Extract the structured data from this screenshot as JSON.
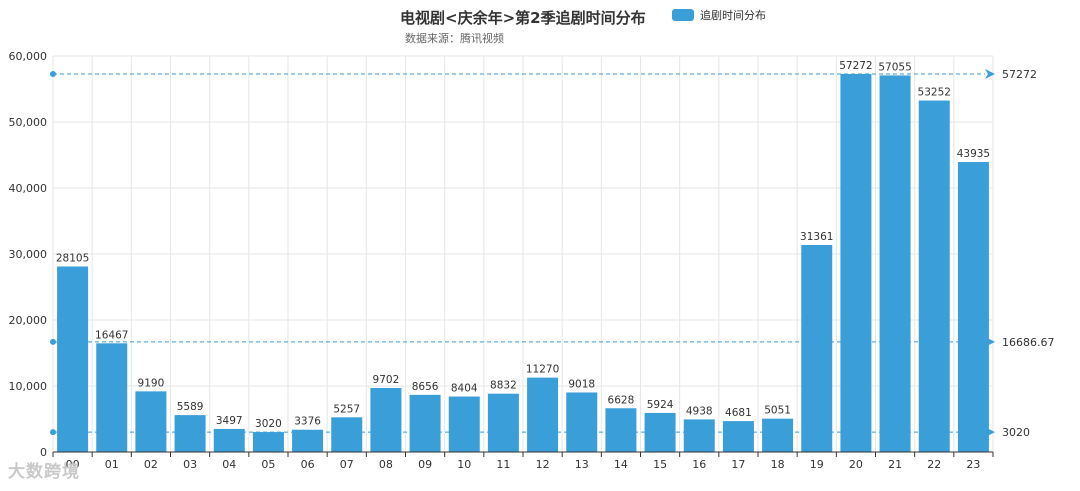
{
  "header": {
    "title": "电视剧<庆余年>第2季追剧时间分布",
    "subtitle": "数据来源：腾讯视频",
    "legend_label": "追剧时间分布"
  },
  "watermark": "大数跨境",
  "colors": {
    "bar": "#3a9ed9",
    "markline": "#3a9ed9",
    "grid": "#e6e6e6",
    "axis_text": "#333333"
  },
  "chart_data": {
    "type": "bar",
    "title": "电视剧<庆余年>第2季追剧时间分布",
    "subtitle": "数据来源：腾讯视频",
    "categories": [
      "00",
      "01",
      "02",
      "03",
      "04",
      "05",
      "06",
      "07",
      "08",
      "09",
      "10",
      "11",
      "12",
      "13",
      "14",
      "15",
      "16",
      "17",
      "18",
      "19",
      "20",
      "21",
      "22",
      "23"
    ],
    "series": [
      {
        "name": "追剧时间分布",
        "values": [
          28105,
          16467,
          9190,
          5589,
          3497,
          3020,
          3376,
          5257,
          9702,
          8656,
          8404,
          8832,
          11270,
          9018,
          6628,
          5924,
          4938,
          4681,
          5051,
          31361,
          57272,
          57055,
          53252,
          43935
        ]
      }
    ],
    "ylim": [
      0,
      60000
    ],
    "yticks": [
      "0",
      "10,000",
      "20,000",
      "30,000",
      "40,000",
      "50,000",
      "60,000"
    ],
    "grid": true,
    "legend_position": "top",
    "mark_lines": [
      {
        "label": "57272",
        "value": 57272
      },
      {
        "label": "16686.67",
        "value": 16686.67
      },
      {
        "label": "3020",
        "value": 3020
      }
    ]
  }
}
